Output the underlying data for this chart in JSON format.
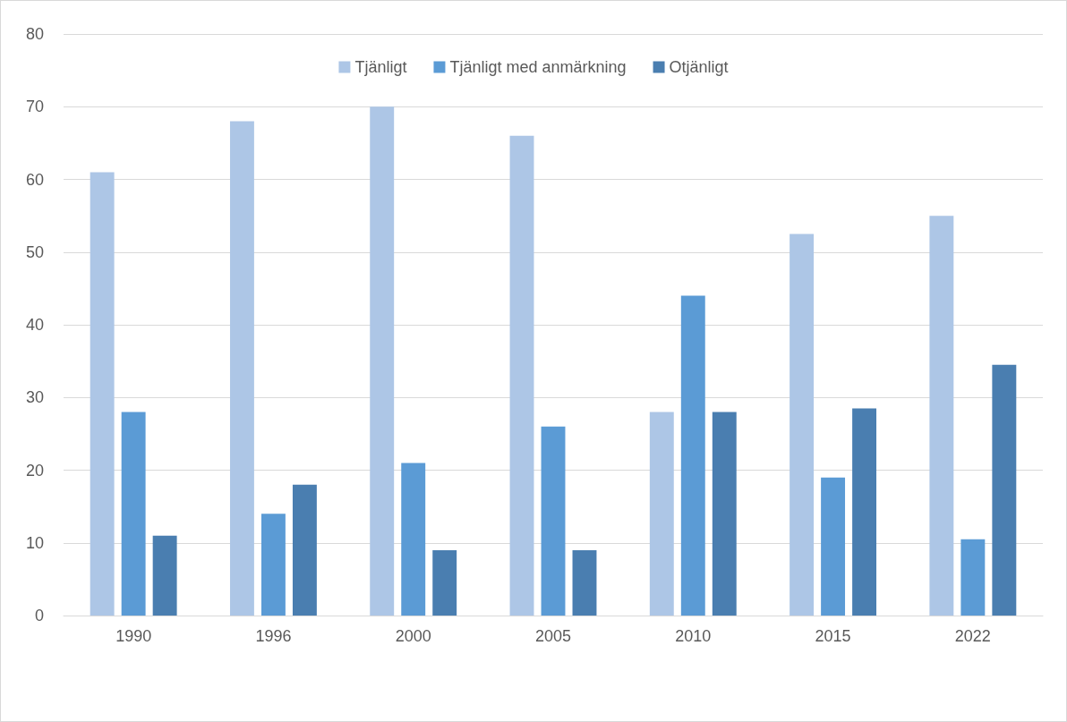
{
  "chart_data": {
    "type": "bar",
    "categories": [
      "1990",
      "1996",
      "2000",
      "2005",
      "2010",
      "2015",
      "2022"
    ],
    "series": [
      {
        "name": "Tjänligt",
        "color": "#adc6e6",
        "values": [
          61,
          68,
          70,
          66,
          28,
          52.5,
          55
        ]
      },
      {
        "name": "Tjänligt med anmärkning",
        "color": "#5b9bd5",
        "values": [
          28,
          14,
          21,
          26,
          44,
          19,
          10.5
        ]
      },
      {
        "name": "Otjänligt",
        "color": "#4a7eb0",
        "values": [
          11,
          18,
          9,
          9,
          28,
          28.5,
          34.5
        ]
      }
    ],
    "ylim": [
      0,
      80
    ],
    "yticks": [
      0,
      10,
      20,
      30,
      40,
      50,
      60,
      70,
      80
    ],
    "grid": "y",
    "legend": "top"
  }
}
